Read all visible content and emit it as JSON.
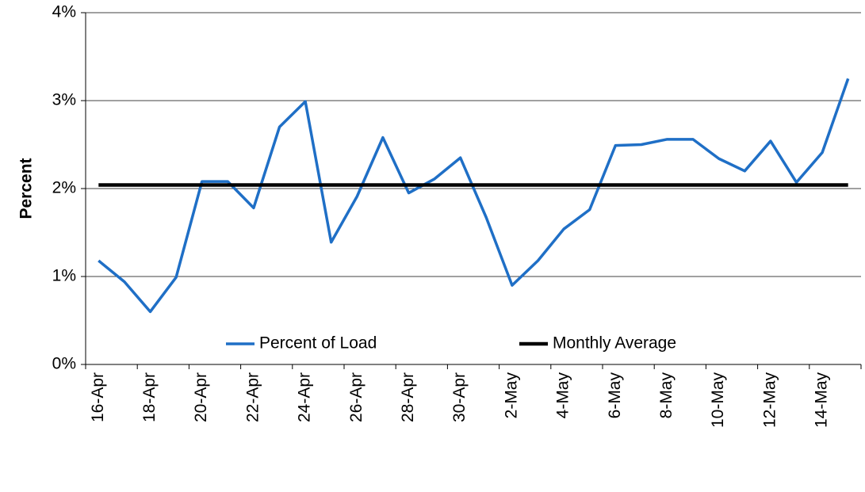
{
  "chart_data": {
    "type": "line",
    "y_label": "Percent",
    "categories": [
      "16-Apr",
      null,
      "18-Apr",
      null,
      "20-Apr",
      null,
      "22-Apr",
      null,
      "24-Apr",
      null,
      "26-Apr",
      null,
      "28-Apr",
      null,
      "30-Apr",
      null,
      "2-May",
      null,
      "4-May",
      null,
      "6-May",
      null,
      "8-May",
      null,
      "10-May",
      null,
      "12-May",
      null,
      "14-May",
      null
    ],
    "series": [
      {
        "name": "Percent of Load",
        "color": "#1f6fc6",
        "values": [
          1.18,
          0.94,
          0.6,
          0.99,
          2.08,
          2.08,
          1.78,
          2.7,
          2.99,
          1.39,
          1.91,
          2.58,
          1.95,
          2.11,
          2.35,
          1.67,
          0.9,
          1.18,
          1.54,
          1.76,
          2.49,
          2.5,
          2.56,
          2.56,
          2.34,
          2.2,
          2.54,
          2.07,
          2.41,
          3.25
        ]
      },
      {
        "name": "Monthly Average",
        "color": "#000000",
        "values": [
          2.04,
          2.04,
          2.04,
          2.04,
          2.04,
          2.04,
          2.04,
          2.04,
          2.04,
          2.04,
          2.04,
          2.04,
          2.04,
          2.04,
          2.04,
          2.04,
          2.04,
          2.04,
          2.04,
          2.04,
          2.04,
          2.04,
          2.04,
          2.04,
          2.04,
          2.04,
          2.04,
          2.04,
          2.04,
          2.04
        ]
      }
    ],
    "ylim": [
      0,
      4
    ],
    "yticks": [
      {
        "value": 0,
        "label": "0%"
      },
      {
        "value": 1,
        "label": "1%"
      },
      {
        "value": 2,
        "label": "2%"
      },
      {
        "value": 3,
        "label": "3%"
      },
      {
        "value": 4,
        "label": "4%"
      }
    ],
    "grid": true,
    "legend": "bottom"
  }
}
